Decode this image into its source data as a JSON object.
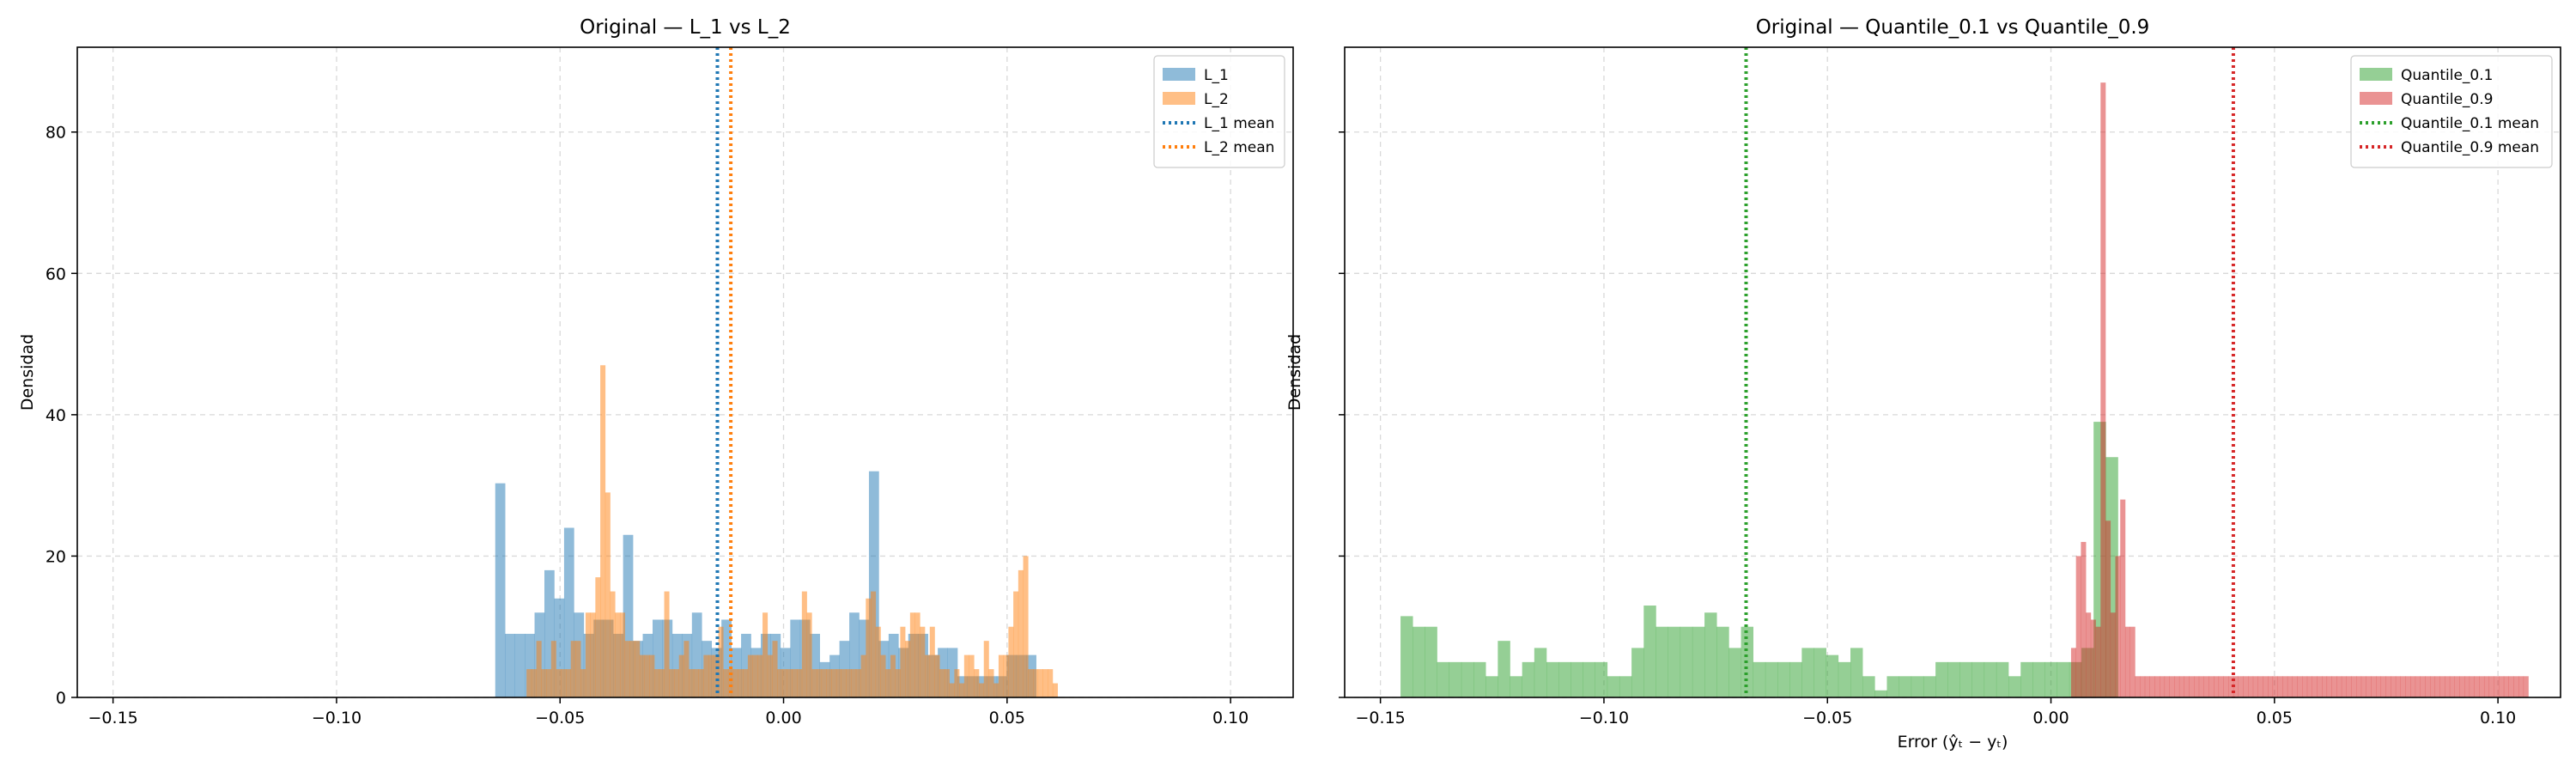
{
  "chart_data": [
    {
      "type": "histogram",
      "title": "Original — L_1 vs L_2",
      "xlabel": "",
      "ylabel": "Densidad",
      "xlim": [
        -0.158,
        0.114
      ],
      "ylim": [
        0,
        92
      ],
      "xticks": [
        -0.15,
        -0.1,
        -0.05,
        0.0,
        0.05,
        0.1
      ],
      "xtick_labels": [
        "−0.15",
        "−0.10",
        "−0.05",
        "0.00",
        "0.05",
        "0.10"
      ],
      "yticks": [
        0,
        20,
        40,
        60,
        80
      ],
      "ytick_labels": [
        "0",
        "20",
        "40",
        "60",
        "80"
      ],
      "grid": true,
      "legend_position": "top-right",
      "series": [
        {
          "name": "L_1",
          "color": "#1f77b4",
          "alpha": 0.5,
          "bin_start": -0.0645,
          "bin_width": 0.0022,
          "values": [
            30.3,
            9,
            9,
            9,
            12,
            18,
            14,
            24,
            12,
            9,
            11,
            11,
            9,
            23,
            8,
            9,
            11,
            11,
            9,
            9,
            12,
            8,
            7,
            11,
            7,
            9,
            7,
            9,
            9,
            7,
            11,
            11,
            9,
            5,
            6,
            8,
            12,
            11,
            32,
            8,
            9,
            7,
            9,
            9,
            6,
            7,
            7,
            3,
            3,
            3,
            3,
            3,
            6,
            6,
            6
          ]
        },
        {
          "name": "L_2",
          "color": "#ff7f0e",
          "alpha": 0.5,
          "bin_start": -0.0575,
          "bin_width": 0.0011,
          "values": [
            4,
            4,
            8,
            4,
            4,
            8,
            4,
            4,
            4,
            8,
            8,
            4,
            12,
            12,
            17,
            47,
            29,
            15,
            12,
            12,
            8,
            8,
            8,
            6,
            6,
            6,
            4,
            4,
            15,
            4,
            4,
            6,
            8,
            4,
            4,
            4,
            6,
            6,
            6,
            10,
            4,
            4,
            4,
            4,
            4,
            6,
            6,
            6,
            12,
            6,
            8,
            4,
            4,
            4,
            4,
            4,
            15,
            12,
            4,
            4,
            4,
            4,
            4,
            4,
            4,
            4,
            4,
            4,
            6,
            14,
            15,
            10,
            6,
            4,
            6,
            4,
            10,
            8,
            12,
            12,
            10,
            6,
            10,
            6,
            4,
            4,
            2,
            4,
            2,
            6,
            6,
            4,
            2,
            8,
            4,
            2,
            6,
            6,
            10,
            15,
            18,
            20,
            4,
            4,
            4,
            4,
            4,
            2
          ]
        }
      ],
      "mean_lines": [
        {
          "name": "L_1 mean",
          "x": -0.0148,
          "color": "#1f77b4"
        },
        {
          "name": "L_2 mean",
          "x": -0.0118,
          "color": "#ff7f0e"
        }
      ]
    },
    {
      "type": "histogram",
      "title": "Original — Quantile_0.1 vs Quantile_0.9",
      "xlabel": "Error (ŷₜ − yₜ)",
      "ylabel": "Densidad",
      "xlim": [
        -0.158,
        0.114
      ],
      "ylim": [
        0,
        92
      ],
      "xticks": [
        -0.15,
        -0.1,
        -0.05,
        0.0,
        0.05,
        0.1
      ],
      "xtick_labels": [
        "−0.15",
        "−0.10",
        "−0.05",
        "0.00",
        "0.05",
        "0.10"
      ],
      "yticks": [
        0,
        20,
        40,
        60,
        80
      ],
      "ytick_labels": [],
      "grid": true,
      "legend_position": "top-right",
      "series": [
        {
          "name": "Quantile_0.1",
          "color": "#2ca02c",
          "alpha": 0.5,
          "bin_start": -0.1455,
          "bin_width": 0.00272,
          "values": [
            11.5,
            10,
            10,
            5,
            5,
            5,
            5,
            3,
            8,
            3,
            5,
            7,
            5,
            5,
            5,
            5,
            5,
            3,
            3,
            7,
            13,
            10,
            10,
            10,
            10,
            12,
            10,
            7,
            10,
            5,
            5,
            5,
            5,
            7,
            7,
            6,
            5,
            7,
            3,
            1,
            3,
            3,
            3,
            3,
            5,
            5,
            5,
            5,
            5,
            5,
            3,
            5,
            5,
            5,
            5,
            5,
            7,
            39,
            34
          ]
        },
        {
          "name": "Quantile_0.9",
          "color": "#d62728",
          "alpha": 0.5,
          "bin_start": 0.0045,
          "bin_width": 0.0011,
          "values": [
            7,
            20,
            22,
            12,
            11,
            10,
            87,
            25,
            12,
            20,
            28,
            10,
            10,
            3,
            3,
            3,
            3,
            3,
            3,
            3,
            3,
            3,
            3,
            3,
            3,
            3,
            3,
            3,
            3,
            3,
            3,
            3,
            3,
            3,
            3,
            3,
            3,
            3,
            3,
            3,
            3,
            3,
            3,
            3,
            3,
            3,
            3,
            3,
            3,
            3,
            3,
            3,
            3,
            3,
            3,
            3,
            3,
            3,
            3,
            3,
            3,
            3,
            3,
            3,
            3,
            3,
            3,
            3,
            3,
            3,
            3,
            3,
            3,
            3,
            3,
            3,
            3,
            3,
            3,
            3,
            3,
            3,
            3,
            3,
            3,
            3,
            3,
            3,
            3,
            3,
            3,
            3,
            3
          ]
        }
      ],
      "mean_lines": [
        {
          "name": "Quantile_0.1 mean",
          "x": -0.0682,
          "color": "#2ca02c"
        },
        {
          "name": "Quantile_0.9 mean",
          "x": 0.0408,
          "color": "#d62728"
        }
      ]
    }
  ]
}
